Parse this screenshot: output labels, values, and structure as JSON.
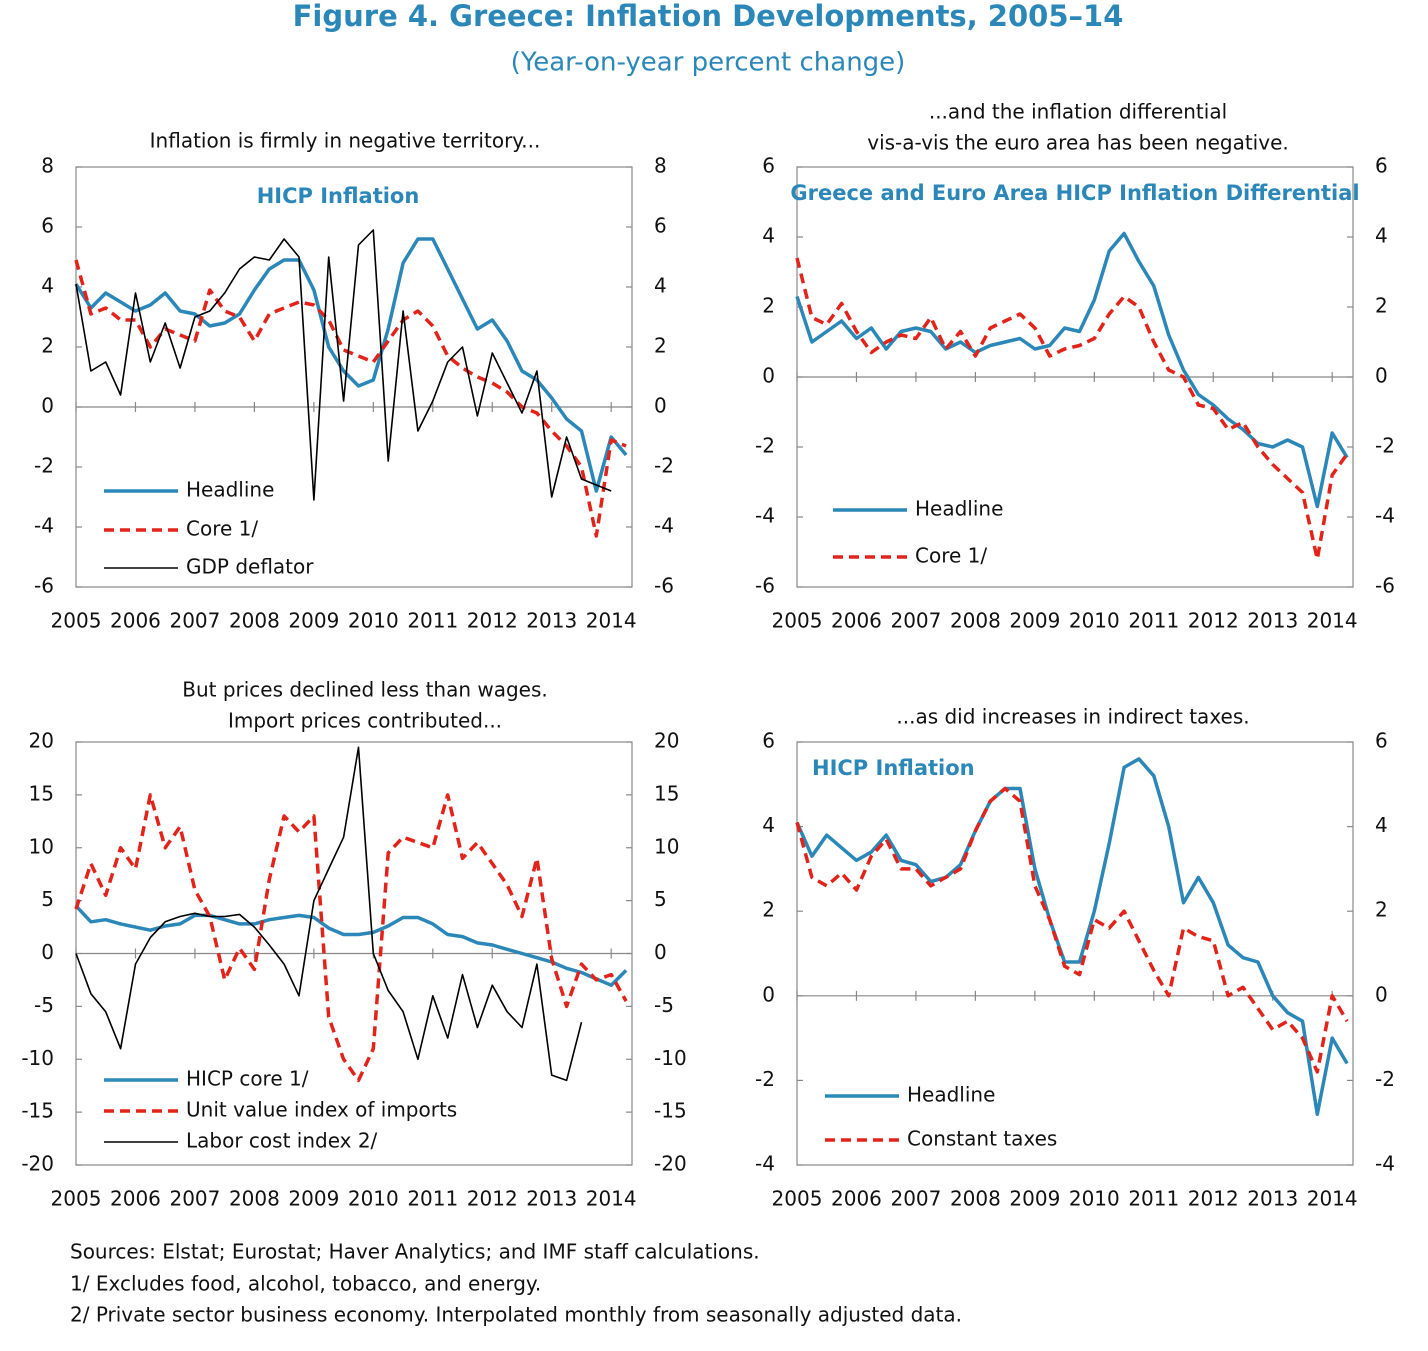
{
  "title": "Figure 4. Greece: Inflation Developments, 2005–14",
  "subtitle": "(Year-on-year percent change)",
  "chart_data": [
    {
      "type": "line",
      "title": [
        "Inflation is firmly in negative territory..."
      ],
      "inner_title": "HICP Inflation",
      "x": [
        2005,
        2005.25,
        2005.5,
        2005.75,
        2006,
        2006.25,
        2006.5,
        2006.75,
        2007,
        2007.25,
        2007.5,
        2007.75,
        2008,
        2008.25,
        2008.5,
        2008.75,
        2009,
        2009.25,
        2009.5,
        2009.75,
        2010,
        2010.25,
        2010.5,
        2010.75,
        2011,
        2011.25,
        2011.5,
        2011.75,
        2012,
        2012.25,
        2012.5,
        2012.75,
        2013,
        2013.25,
        2013.5,
        2013.75,
        2014,
        2014.25
      ],
      "xlim": [
        2005,
        2014.35
      ],
      "xticks": [
        2005,
        2006,
        2007,
        2008,
        2009,
        2010,
        2011,
        2012,
        2013,
        2014
      ],
      "ylim": [
        -6,
        8
      ],
      "yticks": [
        -6,
        -4,
        -2,
        0,
        2,
        4,
        6,
        8
      ],
      "y2lim": [
        -6,
        8
      ],
      "y2ticks": [
        -6,
        -4,
        -2,
        0,
        2,
        4,
        6,
        8
      ],
      "legend": "lower left",
      "series": [
        {
          "name": "Headline",
          "color": "#2b87b8",
          "style": "solid",
          "width": 3.5,
          "values": [
            4.1,
            3.3,
            3.8,
            3.5,
            3.2,
            3.4,
            3.8,
            3.2,
            3.1,
            2.7,
            2.8,
            3.1,
            3.9,
            4.6,
            4.9,
            4.9,
            3.9,
            2.0,
            1.2,
            0.7,
            0.9,
            2.6,
            4.8,
            5.6,
            5.6,
            4.6,
            3.6,
            2.6,
            2.9,
            2.2,
            1.2,
            0.9,
            0.3,
            -0.4,
            -0.8,
            -2.8,
            -1.0,
            -1.6
          ]
        },
        {
          "name": "Core 1/",
          "color": "#e2231a",
          "style": "dashed",
          "width": 3.5,
          "values": [
            4.9,
            3.1,
            3.3,
            2.9,
            2.9,
            2.0,
            2.6,
            2.4,
            2.2,
            3.9,
            3.2,
            3.0,
            2.2,
            3.1,
            3.3,
            3.5,
            3.4,
            2.9,
            1.9,
            1.7,
            1.5,
            2.2,
            2.9,
            3.2,
            2.7,
            1.7,
            1.3,
            1.0,
            0.8,
            0.5,
            0.0,
            -0.2,
            -0.8,
            -1.3,
            -2.0,
            -4.3,
            -1.1,
            -1.3
          ]
        },
        {
          "name": "GDP deflator",
          "color": "#000000",
          "style": "solid",
          "width": 1.6,
          "values": [
            4.1,
            1.2,
            1.5,
            0.4,
            3.8,
            1.5,
            2.8,
            1.3,
            3.0,
            3.2,
            3.8,
            4.6,
            5.0,
            4.9,
            5.6,
            5.0,
            -3.1,
            5.0,
            0.2,
            5.4,
            5.9,
            -1.8,
            3.2,
            -0.8,
            0.2,
            1.5,
            2.0,
            -0.3,
            1.8,
            0.8,
            -0.2,
            1.2,
            -3.0,
            -1.0,
            -2.4,
            -2.6,
            -2.8,
            null
          ]
        }
      ]
    },
    {
      "type": "line",
      "title": [
        "...and the inflation differential",
        "vis-a-vis the euro area has been negative."
      ],
      "inner_title": "Greece and Euro Area HICP Inflation Differential",
      "x": [
        2005,
        2005.25,
        2005.5,
        2005.75,
        2006,
        2006.25,
        2006.5,
        2006.75,
        2007,
        2007.25,
        2007.5,
        2007.75,
        2008,
        2008.25,
        2008.5,
        2008.75,
        2009,
        2009.25,
        2009.5,
        2009.75,
        2010,
        2010.25,
        2010.5,
        2010.75,
        2011,
        2011.25,
        2011.5,
        2011.75,
        2012,
        2012.25,
        2012.5,
        2012.75,
        2013,
        2013.25,
        2013.5,
        2013.75,
        2014,
        2014.25
      ],
      "xlim": [
        2005,
        2014.35
      ],
      "xticks": [
        2005,
        2006,
        2007,
        2008,
        2009,
        2010,
        2011,
        2012,
        2013,
        2014
      ],
      "ylim": [
        -6,
        6
      ],
      "yticks": [
        -6,
        -4,
        -2,
        0,
        2,
        4,
        6
      ],
      "y2lim": [
        -6,
        6
      ],
      "y2ticks": [
        -6,
        -4,
        -2,
        0,
        2,
        4,
        6
      ],
      "legend": "lower left",
      "series": [
        {
          "name": "Headline",
          "color": "#2b87b8",
          "style": "solid",
          "width": 3.5,
          "values": [
            2.3,
            1.0,
            1.3,
            1.6,
            1.1,
            1.4,
            0.8,
            1.3,
            1.4,
            1.3,
            0.8,
            1.0,
            0.7,
            0.9,
            1.0,
            1.1,
            0.8,
            0.9,
            1.4,
            1.3,
            2.2,
            3.6,
            4.1,
            3.3,
            2.6,
            1.2,
            0.2,
            -0.5,
            -0.8,
            -1.2,
            -1.5,
            -1.9,
            -2.0,
            -1.8,
            -2.0,
            -3.7,
            -1.6,
            -2.3
          ]
        },
        {
          "name": "Core 1/",
          "color": "#e2231a",
          "style": "dashed",
          "width": 3.5,
          "values": [
            3.4,
            1.7,
            1.5,
            2.1,
            1.3,
            0.7,
            1.0,
            1.2,
            1.1,
            1.7,
            0.8,
            1.3,
            0.6,
            1.4,
            1.6,
            1.8,
            1.4,
            0.6,
            0.8,
            0.9,
            1.1,
            1.8,
            2.3,
            2.0,
            1.0,
            0.2,
            0.0,
            -0.8,
            -0.9,
            -1.5,
            -1.3,
            -2.0,
            -2.5,
            -2.9,
            -3.3,
            -5.2,
            -2.8,
            -2.2
          ]
        }
      ]
    },
    {
      "type": "line",
      "title": [
        "But prices declined less than wages.",
        "Import prices contributed..."
      ],
      "x": [
        2005,
        2005.25,
        2005.5,
        2005.75,
        2006,
        2006.25,
        2006.5,
        2006.75,
        2007,
        2007.25,
        2007.5,
        2007.75,
        2008,
        2008.25,
        2008.5,
        2008.75,
        2009,
        2009.25,
        2009.5,
        2009.75,
        2010,
        2010.25,
        2010.5,
        2010.75,
        2011,
        2011.25,
        2011.5,
        2011.75,
        2012,
        2012.25,
        2012.5,
        2012.75,
        2013,
        2013.25,
        2013.5,
        2013.75,
        2014,
        2014.25
      ],
      "xlim": [
        2005,
        2014.35
      ],
      "xticks": [
        2005,
        2006,
        2007,
        2008,
        2009,
        2010,
        2011,
        2012,
        2013,
        2014
      ],
      "ylim": [
        -20,
        20
      ],
      "yticks": [
        -20,
        -15,
        -10,
        -5,
        0,
        5,
        10,
        15,
        20
      ],
      "y2lim": [
        -20,
        20
      ],
      "y2ticks": [
        -20,
        -15,
        -10,
        -5,
        0,
        5,
        10,
        15,
        20
      ],
      "legend": "lower left",
      "series": [
        {
          "name": "HICP core 1/",
          "color": "#2b87b8",
          "style": "solid",
          "width": 3.5,
          "values": [
            4.5,
            3.0,
            3.2,
            2.8,
            2.5,
            2.2,
            2.6,
            2.8,
            3.6,
            3.6,
            3.2,
            2.8,
            2.8,
            3.2,
            3.4,
            3.6,
            3.4,
            2.4,
            1.8,
            1.8,
            2.0,
            2.6,
            3.4,
            3.4,
            2.8,
            1.8,
            1.6,
            1.0,
            0.8,
            0.4,
            0.0,
            -0.4,
            -0.8,
            -1.4,
            -1.8,
            -2.4,
            -3.0,
            -1.6
          ]
        },
        {
          "name": "Unit value index of imports",
          "color": "#e2231a",
          "style": "dashed",
          "width": 3.5,
          "values": [
            4.2,
            8.5,
            5.5,
            10.0,
            8.0,
            15.0,
            10.0,
            12.0,
            6.0,
            3.5,
            -2.5,
            0.5,
            -1.5,
            7.0,
            13.0,
            11.5,
            13.0,
            -6.0,
            -10.0,
            -12.0,
            -9.0,
            9.5,
            11.0,
            10.5,
            10.0,
            15.0,
            9.0,
            10.5,
            8.5,
            6.5,
            3.5,
            9.0,
            -0.5,
            -5.0,
            -1.0,
            -2.5,
            -2.0,
            -4.5
          ]
        },
        {
          "name": "Labor cost index 2/",
          "color": "#000000",
          "style": "solid",
          "width": 1.6,
          "values": [
            0.0,
            -3.8,
            -5.5,
            -9.0,
            -1.0,
            1.5,
            3.0,
            3.5,
            3.8,
            3.5,
            3.5,
            3.7,
            2.5,
            0.8,
            -1.0,
            -4.0,
            5.0,
            8.0,
            11.0,
            19.5,
            0.0,
            -3.5,
            -5.5,
            -10.0,
            -4.0,
            -8.0,
            -2.0,
            -7.0,
            -3.0,
            -5.5,
            -7.0,
            -1.0,
            -11.5,
            -12.0,
            -6.5,
            null,
            null,
            null
          ]
        }
      ]
    },
    {
      "type": "line",
      "title": [
        "...as did increases in indirect taxes."
      ],
      "inner_title": "HICP Inflation",
      "x": [
        2005,
        2005.25,
        2005.5,
        2005.75,
        2006,
        2006.25,
        2006.5,
        2006.75,
        2007,
        2007.25,
        2007.5,
        2007.75,
        2008,
        2008.25,
        2008.5,
        2008.75,
        2009,
        2009.25,
        2009.5,
        2009.75,
        2010,
        2010.25,
        2010.5,
        2010.75,
        2011,
        2011.25,
        2011.5,
        2011.75,
        2012,
        2012.25,
        2012.5,
        2012.75,
        2013,
        2013.25,
        2013.5,
        2013.75,
        2014,
        2014.25
      ],
      "xlim": [
        2005,
        2014.35
      ],
      "xticks": [
        2005,
        2006,
        2007,
        2008,
        2009,
        2010,
        2011,
        2012,
        2013,
        2014
      ],
      "ylim": [
        -4,
        6
      ],
      "yticks": [
        -4,
        -2,
        0,
        2,
        4,
        6
      ],
      "y2lim": [
        -4,
        6
      ],
      "y2ticks": [
        -4,
        -2,
        0,
        2,
        4,
        6
      ],
      "legend": "lower left",
      "series": [
        {
          "name": "Headline",
          "color": "#2b87b8",
          "style": "solid",
          "width": 3.5,
          "values": [
            4.1,
            3.3,
            3.8,
            3.5,
            3.2,
            3.4,
            3.8,
            3.2,
            3.1,
            2.7,
            2.8,
            3.1,
            3.9,
            4.6,
            4.9,
            4.9,
            3.0,
            1.8,
            0.8,
            0.8,
            2.0,
            3.6,
            5.4,
            5.6,
            5.2,
            4.0,
            2.2,
            2.8,
            2.2,
            1.2,
            0.9,
            0.8,
            0.0,
            -0.4,
            -0.6,
            -2.8,
            -1.0,
            -1.6
          ]
        },
        {
          "name": "Constant taxes",
          "color": "#e2231a",
          "style": "dashed",
          "width": 3.5,
          "values": [
            4.1,
            2.8,
            2.6,
            2.9,
            2.5,
            3.3,
            3.7,
            3.0,
            3.0,
            2.6,
            2.8,
            3.0,
            3.9,
            4.6,
            4.9,
            4.6,
            2.6,
            1.8,
            0.7,
            0.5,
            1.8,
            1.6,
            2.0,
            1.3,
            0.6,
            0.0,
            1.6,
            1.4,
            1.3,
            0.0,
            0.2,
            -0.3,
            -0.8,
            -0.6,
            -1.0,
            -1.8,
            0.0,
            -0.6
          ]
        }
      ]
    }
  ],
  "notes": [
    "Sources: Elstat; Eurostat; Haver Analytics; and IMF staff calculations.",
    "1/ Excludes food, alcohol, tobacco, and energy.",
    "2/ Private sector business economy. Interpolated monthly from seasonally adjusted data."
  ]
}
